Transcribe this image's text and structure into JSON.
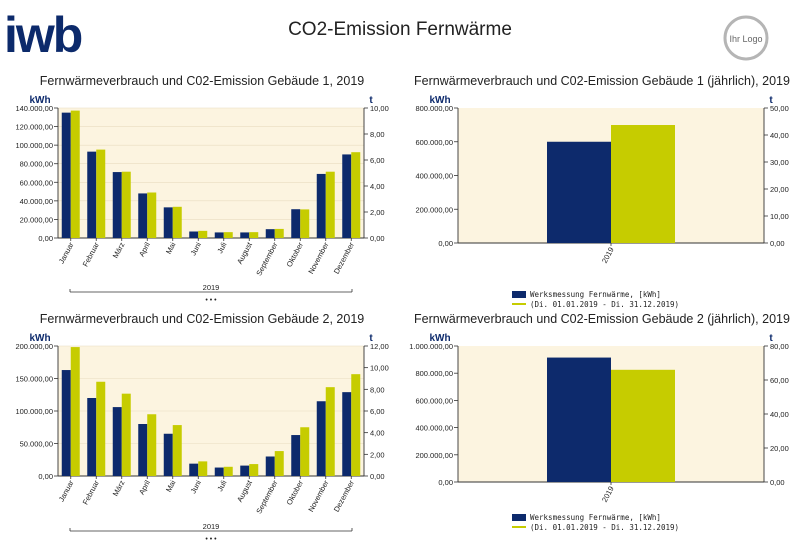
{
  "header": {
    "brand": "iwb",
    "title": "CO2-Emission Fernwärme",
    "placeholder_logo": "Ihr Logo",
    "colors": {
      "brand": "#0c2a6b",
      "kwh": "#0d2a6c",
      "co2": "#c6cc00",
      "plot_bg": "#fcf4e0",
      "grid": "#e8dcc0"
    }
  },
  "chart_data": [
    {
      "type": "bar",
      "title": "Fernwärmeverbrauch und C02-Emission Gebäude 1, 2019",
      "ylabel": "kWh",
      "y2label": "t",
      "ylim": [
        0,
        140000
      ],
      "y2lim": [
        0,
        10
      ],
      "yticks": [
        "0,00",
        "20.000,00",
        "40.000,00",
        "60.000,00",
        "80.000,00",
        "100.000,00",
        "120.000,00",
        "140.000,00"
      ],
      "y2ticks": [
        "0,00",
        "2,00",
        "4,00",
        "6,00",
        "8,00",
        "10,00"
      ],
      "categories": [
        "Januar",
        "Februar",
        "März",
        "April",
        "Mai",
        "Juni",
        "Juli",
        "August",
        "September",
        "Oktober",
        "November",
        "Dezember"
      ],
      "group_label": "2019",
      "more": "• • •",
      "grid": true,
      "series": [
        {
          "name": "kWh",
          "axis": "left",
          "values": [
            135000,
            93000,
            71000,
            48000,
            33000,
            7000,
            6000,
            6000,
            9500,
            31000,
            69000,
            90000
          ]
        },
        {
          "name": "t",
          "axis": "right",
          "values": [
            9.8,
            6.8,
            5.1,
            3.5,
            2.4,
            0.55,
            0.45,
            0.45,
            0.7,
            2.2,
            5.1,
            6.6
          ]
        }
      ]
    },
    {
      "type": "bar",
      "title": "Fernwärmeverbrauch und C02-Emission Gebäude 1 (jährlich), 2019",
      "ylabel": "kWh",
      "y2label": "t",
      "ylim": [
        0,
        800000
      ],
      "y2lim": [
        0,
        50
      ],
      "yticks": [
        "0,00",
        "200.000,00",
        "400.000,00",
        "600.000,00",
        "800.000,00"
      ],
      "y2ticks": [
        "0,00",
        "10,00",
        "20,00",
        "30,00",
        "40,00",
        "50,00"
      ],
      "categories": [
        "2019"
      ],
      "grid": false,
      "series": [
        {
          "name": "kWh",
          "axis": "left",
          "values": [
            600000
          ]
        },
        {
          "name": "t",
          "axis": "right",
          "values": [
            43.7
          ]
        }
      ],
      "legend": {
        "label": "Werksmessung Fernwärme, [kWh]",
        "range": "(Di. 01.01.2019 - Di. 31.12.2019)"
      }
    },
    {
      "type": "bar",
      "title": "Fernwärmeverbrauch und C02-Emission Gebäude 2, 2019",
      "ylabel": "kWh",
      "y2label": "t",
      "ylim": [
        0,
        200000
      ],
      "y2lim": [
        0,
        12
      ],
      "yticks": [
        "0,00",
        "50.000,00",
        "100.000,00",
        "150.000,00",
        "200.000,00"
      ],
      "y2ticks": [
        "0,00",
        "2,00",
        "4,00",
        "6,00",
        "8,00",
        "10,00",
        "12,00"
      ],
      "categories": [
        "Januar",
        "Februar",
        "März",
        "April",
        "Mai",
        "Juni",
        "Juli",
        "August",
        "September",
        "Oktober",
        "November",
        "Dezember"
      ],
      "group_label": "2019",
      "more": "• • •",
      "grid": true,
      "series": [
        {
          "name": "kWh",
          "axis": "left",
          "values": [
            163000,
            120000,
            106000,
            80000,
            65000,
            19000,
            13000,
            16000,
            30000,
            63000,
            115000,
            129000
          ]
        },
        {
          "name": "t",
          "axis": "right",
          "values": [
            11.9,
            8.7,
            7.6,
            5.7,
            4.7,
            1.35,
            0.85,
            1.1,
            2.3,
            4.5,
            8.2,
            9.4
          ]
        }
      ]
    },
    {
      "type": "bar",
      "title": "Fernwärmeverbrauch und C02-Emission Gebäude 2 (jährlich), 2019",
      "ylabel": "kWh",
      "y2label": "t",
      "ylim": [
        0,
        1000000
      ],
      "y2lim": [
        0,
        80
      ],
      "yticks": [
        "0,00",
        "200.000,00",
        "400.000,00",
        "600.000,00",
        "800.000,00",
        "1.000.000,00"
      ],
      "y2ticks": [
        "0,00",
        "20,00",
        "40,00",
        "60,00",
        "80,00"
      ],
      "categories": [
        "2019"
      ],
      "grid": false,
      "series": [
        {
          "name": "kWh",
          "axis": "left",
          "values": [
            915000
          ]
        },
        {
          "name": "t",
          "axis": "right",
          "values": [
            66
          ]
        }
      ],
      "legend": {
        "label": "Werksmessung Fernwärme, [kWh]",
        "range": "(Di. 01.01.2019 - Di. 31.12.2019)"
      }
    }
  ]
}
